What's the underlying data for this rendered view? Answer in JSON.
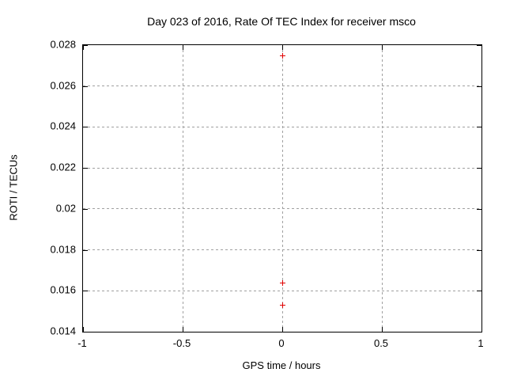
{
  "chart_data": {
    "type": "scatter",
    "title": "Day 023 of 2016, Rate Of TEC Index for receiver msco",
    "xlabel": "GPS time / hours",
    "ylabel": "ROTI / TECUs",
    "xlim": [
      -1,
      1
    ],
    "ylim": [
      0.014,
      0.028
    ],
    "xticks": [
      {
        "value": -1,
        "label": "-1"
      },
      {
        "value": -0.5,
        "label": "-0.5"
      },
      {
        "value": 0,
        "label": "0"
      },
      {
        "value": 0.5,
        "label": "0.5"
      },
      {
        "value": 1,
        "label": "1"
      }
    ],
    "yticks": [
      {
        "value": 0.014,
        "label": "0.014"
      },
      {
        "value": 0.016,
        "label": "0.016"
      },
      {
        "value": 0.018,
        "label": "0.018"
      },
      {
        "value": 0.02,
        "label": "0.02"
      },
      {
        "value": 0.022,
        "label": "0.022"
      },
      {
        "value": 0.024,
        "label": "0.024"
      },
      {
        "value": 0.026,
        "label": "0.026"
      },
      {
        "value": 0.028,
        "label": "0.028"
      }
    ],
    "grid": true,
    "legend_position": "none",
    "marker": "plus",
    "points": [
      {
        "x": 0,
        "y": 0.0275
      },
      {
        "x": 0,
        "y": 0.0164
      },
      {
        "x": 0,
        "y": 0.0153
      }
    ],
    "colors": {
      "marker": "#e00000",
      "grid": "#a0a0a0",
      "border": "#000000",
      "background": "#ffffff",
      "text": "#000000"
    }
  }
}
